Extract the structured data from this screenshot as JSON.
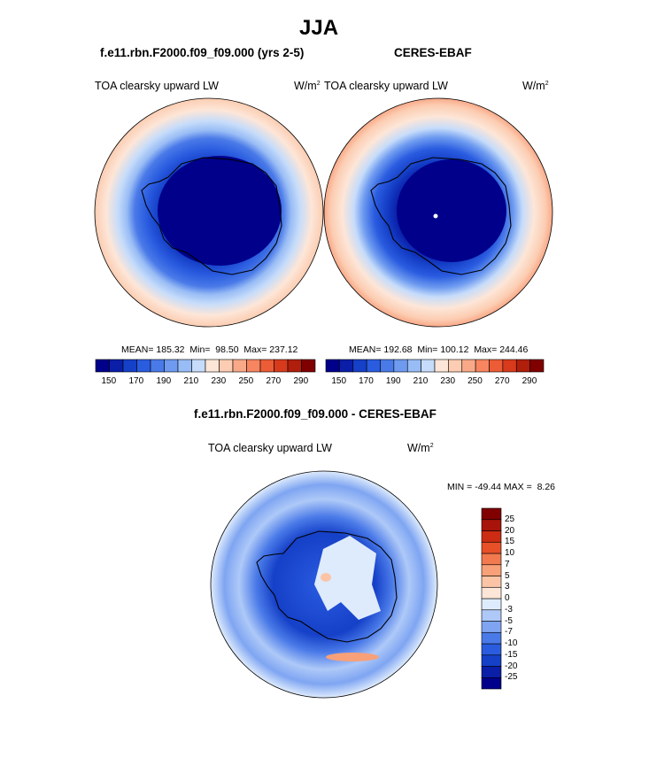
{
  "figure": {
    "title": "JJA",
    "left_panel_title": "f.e11.rbn.F2000.f09_f09.000 (yrs 2-5)",
    "right_panel_title": "CERES-EBAF",
    "diff_panel_title": "f.e11.rbn.F2000.f09_f09.000 - CERES-EBAF",
    "variable": "TOA clearsky upward LW",
    "units_base": "W/m",
    "units_exp": "2"
  },
  "colors": {
    "abs_scale": [
      "#00008b",
      "#0a1ea8",
      "#1540c8",
      "#2a5ce0",
      "#4a7ae8",
      "#6e9bf0",
      "#98bcf5",
      "#c6dcfa",
      "#fde6d8",
      "#fccdb2",
      "#f9a988",
      "#f68560",
      "#ec5c36",
      "#d83a1c",
      "#b01e0c",
      "#800000"
    ],
    "diff_scale": [
      "#00008b",
      "#0a1ea8",
      "#1540c8",
      "#2a5ce0",
      "#4a7ae8",
      "#7fa5f2",
      "#aec9f8",
      "#deebfc",
      "#fde6d8",
      "#fbc4a6",
      "#f8a078",
      "#f27a4e",
      "#e85028",
      "#cc2c12",
      "#a8140a",
      "#800000"
    ]
  },
  "stats": {
    "model": {
      "mean_label": "MEAN=",
      "mean": "185.32",
      "min_label": "Min=",
      "min": "98.50",
      "max_label": "Max=",
      "max": "237.12"
    },
    "obs": {
      "mean_label": "MEAN=",
      "mean": "192.68",
      "min_label": "Min=",
      "min": "100.12",
      "max_label": "Max=",
      "max": "244.46"
    },
    "diff": {
      "min_label": "MIN =",
      "min": "-49.44",
      "max_label": "MAX =",
      "max": "8.26"
    }
  },
  "chart_data": [
    {
      "type": "heatmap",
      "projection": "south-polar-stereographic",
      "title": "f.e11.rbn.F2000.f09_f09.000 (yrs 2-5)",
      "variable": "TOA clearsky upward LW",
      "units": "W/m2",
      "contour_levels": [
        150,
        160,
        170,
        180,
        190,
        200,
        210,
        220,
        230,
        240,
        250,
        260,
        270,
        280,
        290
      ],
      "colorbar_tick_labels": [
        "150",
        "170",
        "190",
        "210",
        "230",
        "250",
        "270",
        "290"
      ],
      "mean": 185.32,
      "min": 98.5,
      "max": 237.12
    },
    {
      "type": "heatmap",
      "projection": "south-polar-stereographic",
      "title": "CERES-EBAF",
      "variable": "TOA clearsky upward LW",
      "units": "W/m2",
      "contour_levels": [
        150,
        160,
        170,
        180,
        190,
        200,
        210,
        220,
        230,
        240,
        250,
        260,
        270,
        280,
        290
      ],
      "colorbar_tick_labels": [
        "150",
        "170",
        "190",
        "210",
        "230",
        "250",
        "270",
        "290"
      ],
      "mean": 192.68,
      "min": 100.12,
      "max": 244.46
    },
    {
      "type": "heatmap",
      "projection": "south-polar-stereographic",
      "title": "f.e11.rbn.F2000.f09_f09.000 - CERES-EBAF",
      "variable": "TOA clearsky upward LW",
      "units": "W/m2",
      "contour_levels": [
        -25,
        -20,
        -15,
        -10,
        -7,
        -5,
        -3,
        0,
        3,
        5,
        7,
        10,
        15,
        20,
        25
      ],
      "colorbar_tick_labels": [
        "25",
        "20",
        "15",
        "10",
        "7",
        "5",
        "3",
        "0",
        "-3",
        "-5",
        "-7",
        "-10",
        "-15",
        "-20",
        "-25"
      ],
      "min": -49.44,
      "max": 8.26
    }
  ]
}
